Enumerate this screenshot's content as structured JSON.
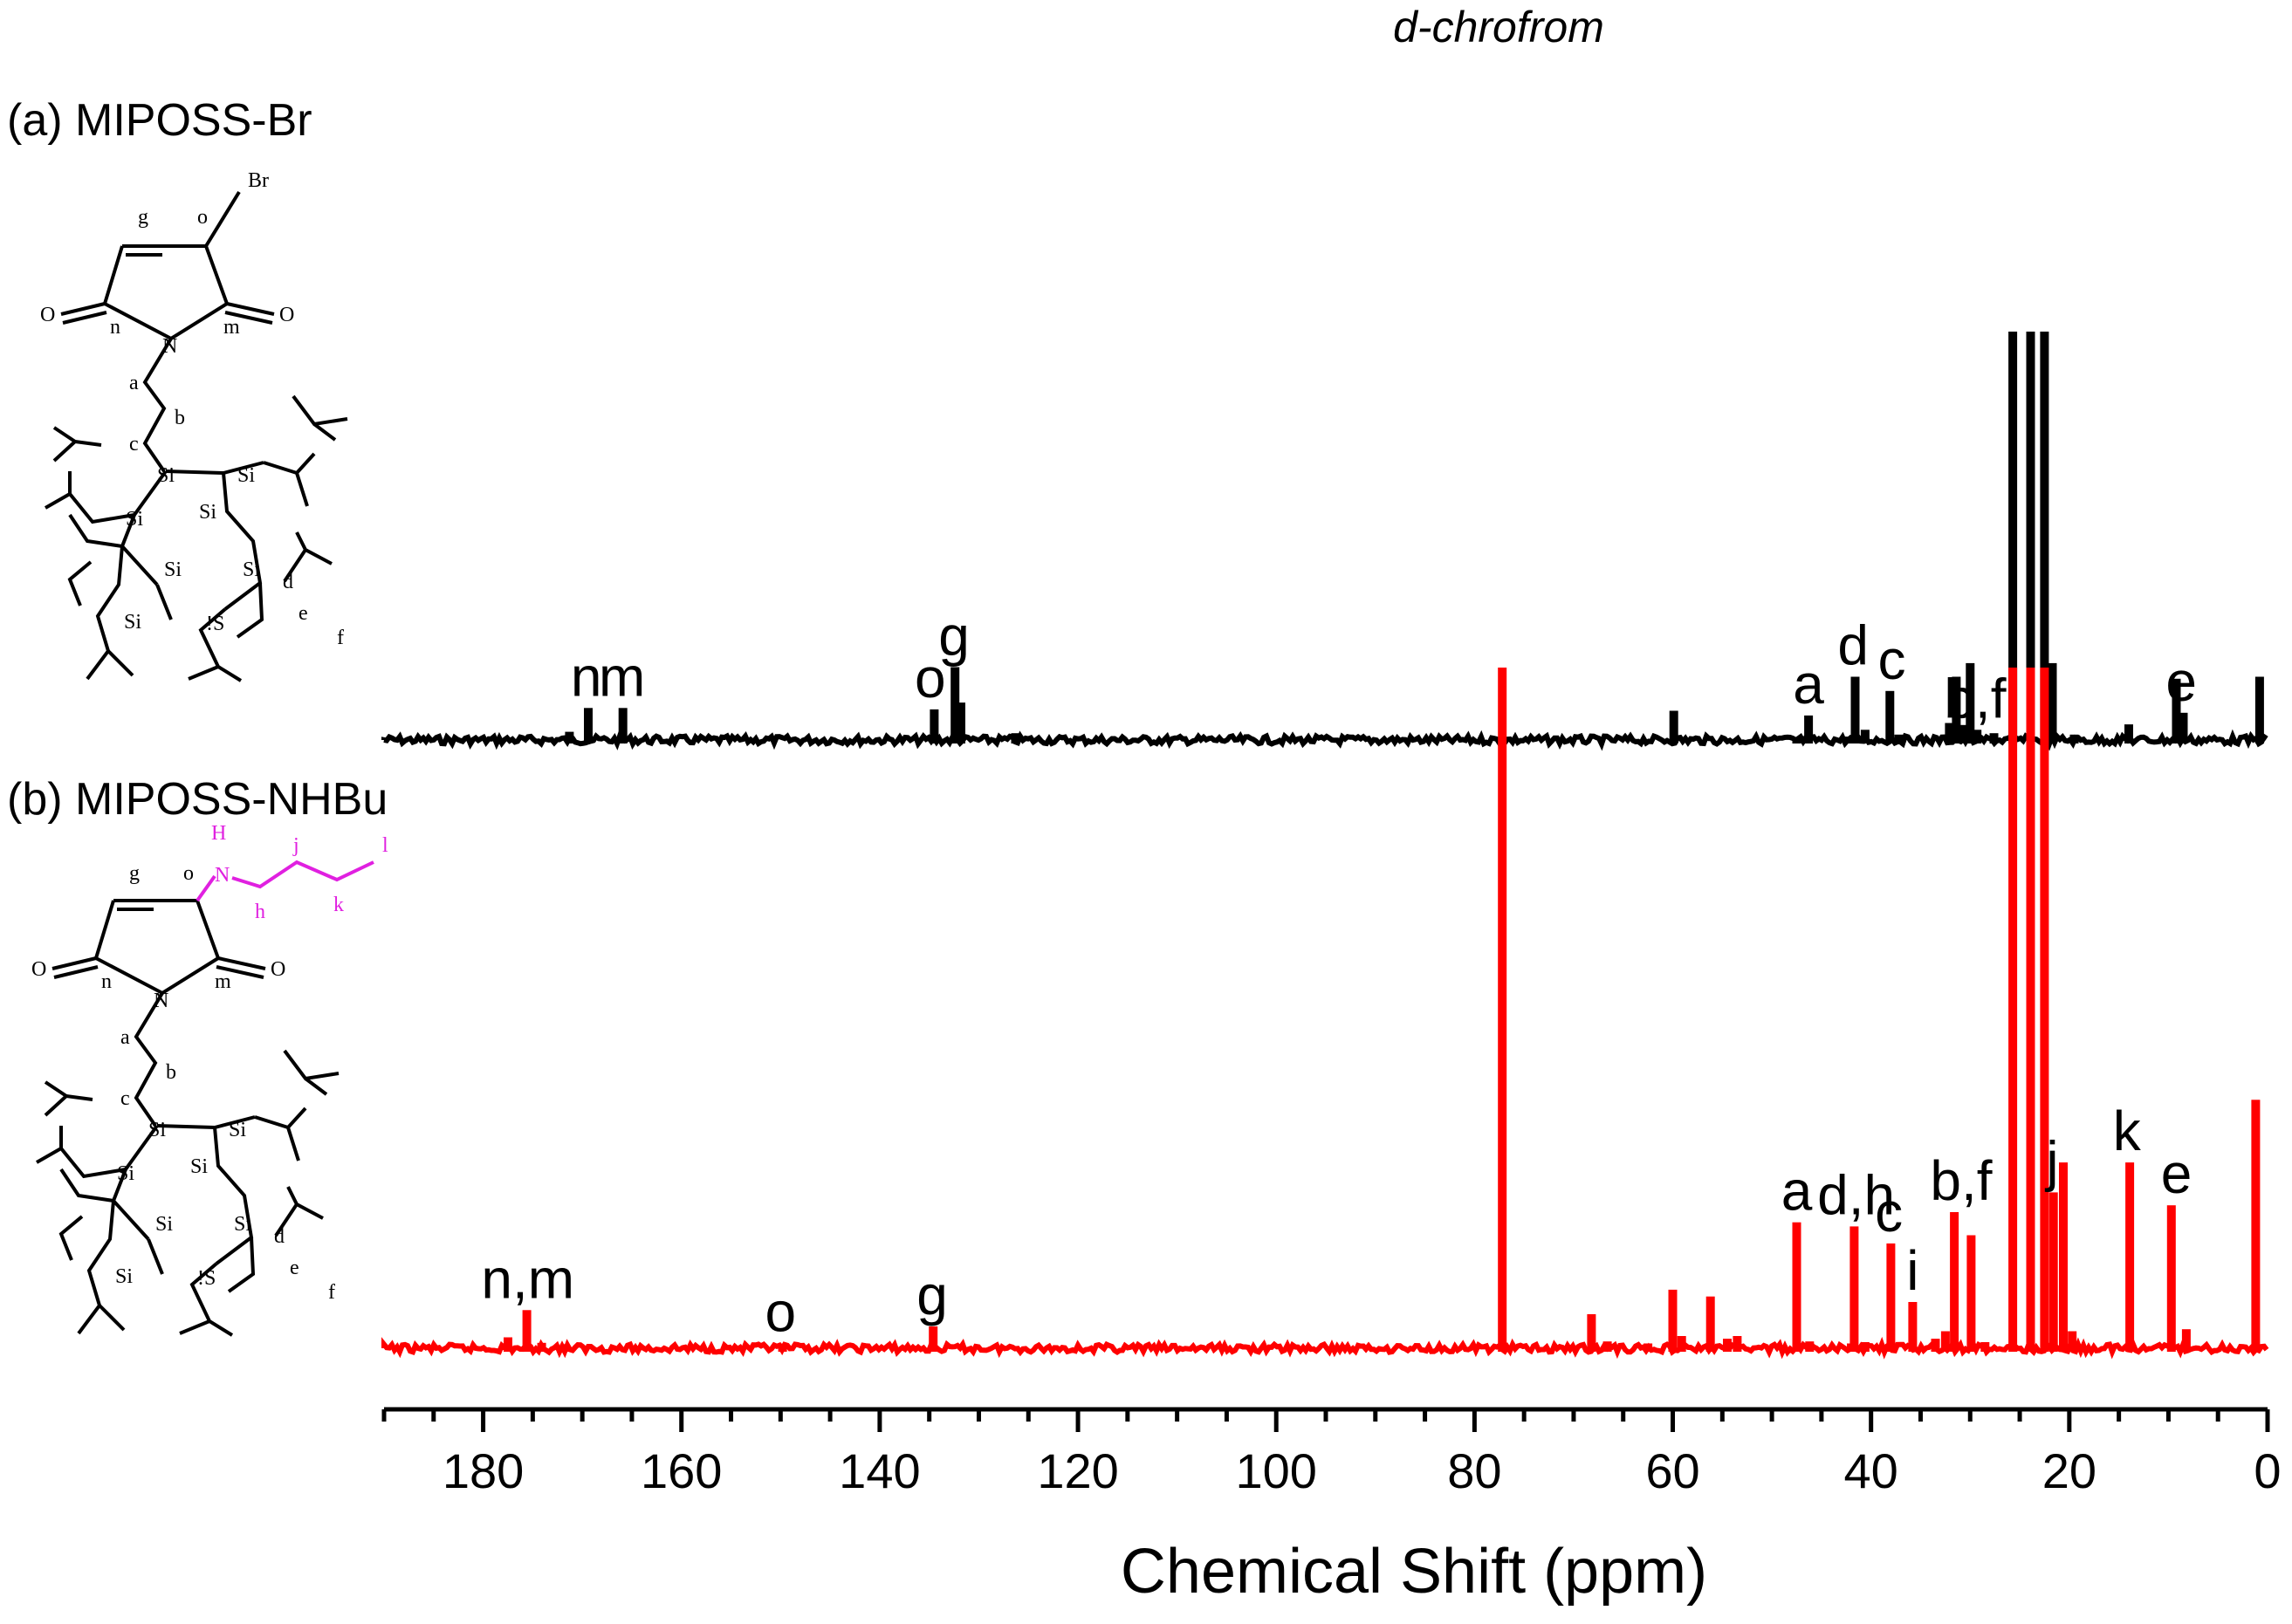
{
  "panels": [
    {
      "label": "(a) MIPOSS-Br"
    },
    {
      "label": "(b) MIPOSS-NHBu"
    }
  ],
  "solvent_label": "d-chrofrom",
  "molecules": {
    "a": {
      "labels": {
        "br": "Br",
        "o": "o",
        "g": "g",
        "n": "n",
        "m": "m",
        "N": "N",
        "O": "O",
        "a": "a",
        "b": "b",
        "c": "c",
        "d": "d",
        "e": "e",
        "f": "f",
        "Si": "Si",
        "S": "!S"
      }
    },
    "b": {
      "labels": {
        "h_nh": "H",
        "N_nh": "N",
        "h": "h",
        "j": "j",
        "k": "k",
        "l": "l",
        "o": "o",
        "g": "g",
        "n": "n",
        "m": "m",
        "N": "N",
        "O": "O",
        "a": "a",
        "b": "b",
        "c": "c",
        "d": "d",
        "e": "e",
        "f": "f",
        "Si": "Si",
        "S": "!S"
      }
    }
  },
  "colors": {
    "top": "#000000",
    "bottom": "#ff0000",
    "nh_chain": "#e020e0"
  },
  "chart_data": {
    "type": "line",
    "title": "",
    "xlabel": "Chemical Shift (ppm)",
    "ylabel": "",
    "xlim": [
      190,
      0
    ],
    "xticks": [
      180,
      160,
      140,
      120,
      100,
      80,
      60,
      40,
      20,
      0
    ],
    "grid": false,
    "legend": "none",
    "series": [
      {
        "name": "(a) MIPOSS-Br",
        "color": "#000000",
        "peaks": [
          {
            "x": 171.3,
            "y": 0.12
          },
          {
            "x": 169.4,
            "y": 0.47
          },
          {
            "x": 165.9,
            "y": 0.47
          },
          {
            "x": 134.5,
            "y": 0.45
          },
          {
            "x": 132.4,
            "y": 1.07
          },
          {
            "x": 131.8,
            "y": 0.55
          },
          {
            "x": 126.3,
            "y": 0.1
          },
          {
            "x": 59.9,
            "y": 0.43
          },
          {
            "x": 47.5,
            "y": 0.03
          },
          {
            "x": 46.3,
            "y": 0.36
          },
          {
            "x": 42.2,
            "y": 0.05
          },
          {
            "x": 41.6,
            "y": 0.93
          },
          {
            "x": 40.6,
            "y": 0.15
          },
          {
            "x": 38.1,
            "y": 0.72
          },
          {
            "x": 37.2,
            "y": 0.08
          },
          {
            "x": 32.1,
            "y": 0.25
          },
          {
            "x": 31.4,
            "y": 0.93
          },
          {
            "x": 30.6,
            "y": 0.22
          },
          {
            "x": 30.0,
            "y": 1.13
          },
          {
            "x": 29.3,
            "y": 0.15
          },
          {
            "x": 27.6,
            "y": 0.1
          },
          {
            "x": 25.7,
            "y": 6.0
          },
          {
            "x": 23.9,
            "y": 6.0
          },
          {
            "x": 22.5,
            "y": 6.0
          },
          {
            "x": 21.7,
            "y": 1.13
          },
          {
            "x": 19.5,
            "y": 0.08
          },
          {
            "x": 14.0,
            "y": 0.23
          },
          {
            "x": 9.2,
            "y": 0.9
          },
          {
            "x": 8.5,
            "y": 0.4
          },
          {
            "x": 0.8,
            "y": 0.93
          }
        ],
        "labels": [
          {
            "text": "n",
            "x": 169.6
          },
          {
            "text": "m",
            "x": 166.0
          },
          {
            "text": "o",
            "x": 134.9
          },
          {
            "text": "g",
            "x": 132.5
          },
          {
            "text": "a",
            "x": 46.3
          },
          {
            "text": "d",
            "x": 41.8
          },
          {
            "text": "c",
            "x": 37.9
          },
          {
            "text": "b,f",
            "x": 29.5
          },
          {
            "text": "e",
            "x": 8.7
          }
        ]
      },
      {
        "name": "(b) MIPOSS-NHBu",
        "color": "#ff0000",
        "peaks": [
          {
            "x": 177.5,
            "y": 0.16
          },
          {
            "x": 175.6,
            "y": 0.56
          },
          {
            "x": 174.1,
            "y": 0.08
          },
          {
            "x": 171.8,
            "y": 0.06
          },
          {
            "x": 149.8,
            "y": 0.07
          },
          {
            "x": 134.6,
            "y": 0.32
          },
          {
            "x": 77.2,
            "y": 10.0
          },
          {
            "x": 68.2,
            "y": 0.5
          },
          {
            "x": 66.6,
            "y": 0.1
          },
          {
            "x": 62.5,
            "y": 0.07
          },
          {
            "x": 60.0,
            "y": 0.86
          },
          {
            "x": 59.1,
            "y": 0.18
          },
          {
            "x": 56.2,
            "y": 0.76
          },
          {
            "x": 54.5,
            "y": 0.14
          },
          {
            "x": 53.5,
            "y": 0.18
          },
          {
            "x": 47.5,
            "y": 1.85
          },
          {
            "x": 46.2,
            "y": 0.1
          },
          {
            "x": 42.0,
            "y": 0.07
          },
          {
            "x": 41.7,
            "y": 1.79
          },
          {
            "x": 40.6,
            "y": 0.09
          },
          {
            "x": 38.0,
            "y": 1.54
          },
          {
            "x": 35.8,
            "y": 0.68
          },
          {
            "x": 33.5,
            "y": 0.14
          },
          {
            "x": 32.5,
            "y": 0.25
          },
          {
            "x": 31.6,
            "y": 2.0
          },
          {
            "x": 29.9,
            "y": 1.66
          },
          {
            "x": 28.5,
            "y": 0.09
          },
          {
            "x": 25.7,
            "y": 10.0
          },
          {
            "x": 23.9,
            "y": 10.0
          },
          {
            "x": 22.5,
            "y": 10.0
          },
          {
            "x": 21.6,
            "y": 2.29
          },
          {
            "x": 20.6,
            "y": 2.73
          },
          {
            "x": 19.7,
            "y": 0.25
          },
          {
            "x": 13.9,
            "y": 2.73
          },
          {
            "x": 9.7,
            "y": 2.1
          },
          {
            "x": 8.2,
            "y": 0.28
          },
          {
            "x": 1.2,
            "y": 3.65
          }
        ],
        "labels": [
          {
            "text": "n,m",
            "x": 175.5
          },
          {
            "text": "o",
            "x": 150.0
          },
          {
            "text": "g",
            "x": 134.7
          },
          {
            "text": "a",
            "x": 47.5
          },
          {
            "text": "d,h",
            "x": 41.5
          },
          {
            "text": "c",
            "x": 38.2
          },
          {
            "text": "i",
            "x": 35.8
          },
          {
            "text": "b,f",
            "x": 30.9
          },
          {
            "text": "j",
            "x": 21.7
          },
          {
            "text": "k",
            "x": 14.2
          },
          {
            "text": "e",
            "x": 9.2
          }
        ]
      }
    ],
    "annotations": [
      {
        "text": "d-chrofrom",
        "x": 77.2
      }
    ]
  }
}
